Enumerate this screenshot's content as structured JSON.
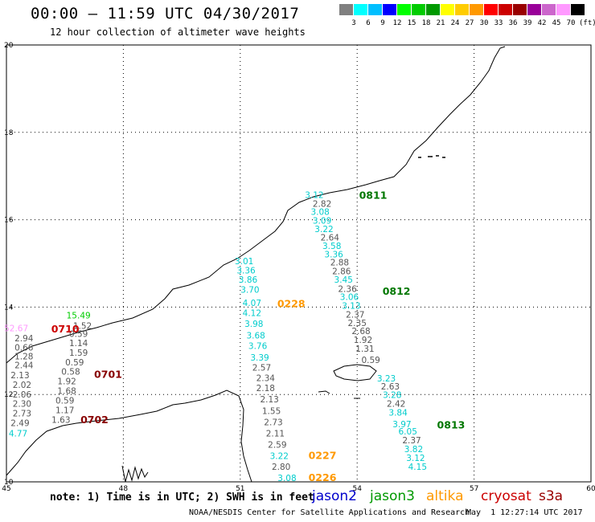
{
  "header": {
    "title": "00:00 — 11:59 UTC 04/30/2017",
    "subtitle": "12 hour collection of altimeter wave heights"
  },
  "legend": {
    "unit": "(ft)",
    "levels": [
      "3",
      "6",
      "9",
      "12",
      "15",
      "18",
      "21",
      "24",
      "27",
      "30",
      "33",
      "36",
      "39",
      "42",
      "45",
      "70"
    ],
    "colors": [
      "#808080",
      "#00ffff",
      "#00bfff",
      "#0000ff",
      "#00ff00",
      "#00cc00",
      "#009900",
      "#ffff00",
      "#ffcc00",
      "#ff9900",
      "#ff0000",
      "#cc0000",
      "#990000",
      "#990099",
      "#cc66cc",
      "#ff99ff",
      "#000000"
    ]
  },
  "axes": {
    "x_ticks": [
      "45",
      "48",
      "51",
      "54",
      "57",
      "60"
    ],
    "y_ticks": [
      "20",
      "18",
      "16",
      "14",
      "12",
      "10"
    ]
  },
  "tracks": [
    {
      "pass": "0811",
      "color": "#007700",
      "points": [
        {
          "v": "3.12",
          "c": "#00cccc",
          "lon": 52.9,
          "lat": 16.5
        },
        {
          "v": "2.82",
          "c": "#555555",
          "lon": 53.1,
          "lat": 16.3
        },
        {
          "v": "3.08",
          "c": "#00cccc",
          "lon": 53.05,
          "lat": 16.11
        },
        {
          "v": "3.09",
          "c": "#00cccc",
          "lon": 53.1,
          "lat": 15.91
        },
        {
          "v": "3.22",
          "c": "#00cccc",
          "lon": 53.15,
          "lat": 15.72
        },
        {
          "v": "2.64",
          "c": "#555555",
          "lon": 53.3,
          "lat": 15.52
        },
        {
          "v": "3.58",
          "c": "#00cccc",
          "lon": 53.35,
          "lat": 15.33
        },
        {
          "v": "3.36",
          "c": "#00cccc",
          "lon": 53.4,
          "lat": 15.14
        },
        {
          "v": "2.88",
          "c": "#555555",
          "lon": 53.55,
          "lat": 14.95
        },
        {
          "v": "2.86",
          "c": "#555555",
          "lon": 53.6,
          "lat": 14.75
        },
        {
          "v": "3.45",
          "c": "#00cccc",
          "lon": 53.65,
          "lat": 14.56
        },
        {
          "v": "2.36",
          "c": "#555555",
          "lon": 53.75,
          "lat": 14.35
        }
      ]
    },
    {
      "pass": "0812",
      "color": "#007700",
      "points": [
        {
          "v": "3.06",
          "c": "#00cccc",
          "lon": 53.8,
          "lat": 14.16
        },
        {
          "v": "3.13",
          "c": "#00cccc",
          "lon": 53.85,
          "lat": 13.96
        },
        {
          "v": "2.37",
          "c": "#555555",
          "lon": 53.95,
          "lat": 13.76
        },
        {
          "v": "2.35",
          "c": "#555555",
          "lon": 54.0,
          "lat": 13.57
        },
        {
          "v": "2.68",
          "c": "#555555",
          "lon": 54.1,
          "lat": 13.38
        },
        {
          "v": "1.92",
          "c": "#555555",
          "lon": 54.15,
          "lat": 13.18
        },
        {
          "v": "1.31",
          "c": "#555555",
          "lon": 54.2,
          "lat": 12.98
        },
        {
          "v": "0.59",
          "c": "#555555",
          "lon": 54.35,
          "lat": 12.72
        }
      ]
    },
    {
      "pass": "0813",
      "color": "#007700",
      "points": [
        {
          "v": "3.23",
          "c": "#00cccc",
          "lon": 54.75,
          "lat": 12.3
        },
        {
          "v": "2.63",
          "c": "#555555",
          "lon": 54.85,
          "lat": 12.11
        },
        {
          "v": "3.28",
          "c": "#00cccc",
          "lon": 54.9,
          "lat": 11.92
        },
        {
          "v": "2.42",
          "c": "#555555",
          "lon": 55.0,
          "lat": 11.72
        },
        {
          "v": "3.84",
          "c": "#00cccc",
          "lon": 55.05,
          "lat": 11.52
        },
        {
          "v": "3.97",
          "c": "#00cccc",
          "lon": 55.15,
          "lat": 11.25
        },
        {
          "v": "6.05",
          "c": "#00cccc",
          "lon": 55.3,
          "lat": 11.08
        },
        {
          "v": "2.37",
          "c": "#555555",
          "lon": 55.4,
          "lat": 10.88
        },
        {
          "v": "3.82",
          "c": "#00cccc",
          "lon": 55.45,
          "lat": 10.68
        },
        {
          "v": "3.12",
          "c": "#00cccc",
          "lon": 55.5,
          "lat": 10.48
        },
        {
          "v": "4.15",
          "c": "#00cccc",
          "lon": 55.55,
          "lat": 10.28
        }
      ]
    },
    {
      "pass": "0228",
      "color": "#ff9900",
      "points": [
        {
          "v": "3.01",
          "c": "#00cccc",
          "lon": 51.1,
          "lat": 14.98
        },
        {
          "v": "3.36",
          "c": "#00cccc",
          "lon": 51.15,
          "lat": 14.77
        },
        {
          "v": "3.86",
          "c": "#00cccc",
          "lon": 51.2,
          "lat": 14.56
        },
        {
          "v": "3.70",
          "c": "#00cccc",
          "lon": 51.25,
          "lat": 14.33
        },
        {
          "v": "4.07",
          "c": "#00cccc",
          "lon": 51.3,
          "lat": 14.03
        },
        {
          "v": "4.12",
          "c": "#00cccc",
          "lon": 51.3,
          "lat": 13.8
        },
        {
          "v": "3.98",
          "c": "#00cccc",
          "lon": 51.35,
          "lat": 13.55
        },
        {
          "v": "3.68",
          "c": "#00cccc",
          "lon": 51.4,
          "lat": 13.28
        },
        {
          "v": "3.76",
          "c": "#00cccc",
          "lon": 51.45,
          "lat": 13.04
        },
        {
          "v": "3.39",
          "c": "#00cccc",
          "lon": 51.5,
          "lat": 12.78
        },
        {
          "v": "2.57",
          "c": "#555555",
          "lon": 51.55,
          "lat": 12.55
        }
      ]
    },
    {
      "pass": "0227",
      "color": "#ff9900",
      "points": [
        {
          "v": "2.34",
          "c": "#555555",
          "lon": 51.65,
          "lat": 12.31
        },
        {
          "v": "2.18",
          "c": "#555555",
          "lon": 51.65,
          "lat": 12.08
        },
        {
          "v": "2.13",
          "c": "#555555",
          "lon": 51.75,
          "lat": 11.82
        },
        {
          "v": "1.55",
          "c": "#555555",
          "lon": 51.8,
          "lat": 11.55
        },
        {
          "v": "2.73",
          "c": "#555555",
          "lon": 51.85,
          "lat": 11.3
        },
        {
          "v": "2.11",
          "c": "#555555",
          "lon": 51.9,
          "lat": 11.04
        },
        {
          "v": "2.59",
          "c": "#555555",
          "lon": 51.95,
          "lat": 10.78
        },
        {
          "v": "3.22",
          "c": "#00cccc",
          "lon": 52.0,
          "lat": 10.52
        },
        {
          "v": "2.80",
          "c": "#555555",
          "lon": 52.05,
          "lat": 10.28
        }
      ]
    },
    {
      "pass": "0226",
      "color": "#ff9900",
      "points": [
        {
          "v": "3.08",
          "c": "#00cccc",
          "lon": 52.2,
          "lat": 10.02
        }
      ]
    },
    {
      "pass": "0710",
      "color": "#cc0000",
      "points": [
        {
          "v": "15.49",
          "c": "#00cc00",
          "lon": 46.85,
          "lat": 13.74
        },
        {
          "v": "52.67",
          "c": "#ff99ff",
          "lon": 45.25,
          "lat": 13.45
        },
        {
          "v": "1.52",
          "c": "#555555",
          "lon": 46.95,
          "lat": 13.5
        },
        {
          "v": "2.94",
          "c": "#555555",
          "lon": 45.45,
          "lat": 13.22
        },
        {
          "v": "0.59",
          "c": "#555555",
          "lon": 46.85,
          "lat": 13.32
        },
        {
          "v": "0.66",
          "c": "#555555",
          "lon": 45.45,
          "lat": 13.01
        },
        {
          "v": "1.14",
          "c": "#555555",
          "lon": 46.85,
          "lat": 13.11
        },
        {
          "v": "1.28",
          "c": "#555555",
          "lon": 45.45,
          "lat": 12.8
        },
        {
          "v": "1.59",
          "c": "#555555",
          "lon": 46.85,
          "lat": 12.89
        }
      ]
    },
    {
      "pass": "0701",
      "color": "#880000",
      "points": [
        {
          "v": "2.44",
          "c": "#555555",
          "lon": 45.45,
          "lat": 12.6
        },
        {
          "v": "0.59",
          "c": "#555555",
          "lon": 46.75,
          "lat": 12.67
        },
        {
          "v": "2.13",
          "c": "#555555",
          "lon": 45.35,
          "lat": 12.37
        },
        {
          "v": "0.58",
          "c": "#555555",
          "lon": 46.65,
          "lat": 12.45
        },
        {
          "v": "2.02",
          "c": "#555555",
          "lon": 45.4,
          "lat": 12.15
        },
        {
          "v": "1.92",
          "c": "#555555",
          "lon": 46.55,
          "lat": 12.23
        }
      ]
    },
    {
      "pass": "0702",
      "color": "#880000",
      "points": [
        {
          "v": "2.06",
          "c": "#555555",
          "lon": 45.4,
          "lat": 11.93
        },
        {
          "v": "1.68",
          "c": "#555555",
          "lon": 46.55,
          "lat": 12.01
        },
        {
          "v": "2.30",
          "c": "#555555",
          "lon": 45.4,
          "lat": 11.72
        },
        {
          "v": "0.59",
          "c": "#555555",
          "lon": 46.5,
          "lat": 11.79
        },
        {
          "v": "2.73",
          "c": "#555555",
          "lon": 45.4,
          "lat": 11.5
        },
        {
          "v": "1.17",
          "c": "#555555",
          "lon": 46.5,
          "lat": 11.57
        },
        {
          "v": "2.49",
          "c": "#555555",
          "lon": 45.35,
          "lat": 11.28
        },
        {
          "v": "1.63",
          "c": "#555555",
          "lon": 46.4,
          "lat": 11.35
        },
        {
          "v": "4.77",
          "c": "#00cccc",
          "lon": 45.3,
          "lat": 11.04
        }
      ]
    }
  ],
  "pass_labels": [
    {
      "id": "0811",
      "color": "#007700",
      "lon": 54.05,
      "lat": 16.48
    },
    {
      "id": "0812",
      "color": "#007700",
      "lon": 54.65,
      "lat": 14.28
    },
    {
      "id": "0813",
      "color": "#007700",
      "lon": 56.05,
      "lat": 11.22
    },
    {
      "id": "0228",
      "color": "#ff9900",
      "lon": 51.95,
      "lat": 14.0
    },
    {
      "id": "0227",
      "color": "#ff9900",
      "lon": 52.75,
      "lat": 10.52
    },
    {
      "id": "0226",
      "color": "#ff9900",
      "lon": 52.75,
      "lat": 10.02
    },
    {
      "id": "0710",
      "color": "#cc0000",
      "lon": 46.15,
      "lat": 13.42
    },
    {
      "id": "0701",
      "color": "#880000",
      "lon": 47.25,
      "lat": 12.38
    },
    {
      "id": "0702",
      "color": "#880000",
      "lon": 46.9,
      "lat": 11.34
    }
  ],
  "footer": {
    "note": "note: 1) Time is in UTC; 2) SWH is in feet",
    "satellites": [
      {
        "name": "jason2",
        "color": "#0000cc"
      },
      {
        "name": "jason3",
        "color": "#009900"
      },
      {
        "name": "altika",
        "color": "#ff9900"
      },
      {
        "name": "cryosat",
        "color": "#cc0000"
      },
      {
        "name": "s3a",
        "color": "#990000"
      }
    ],
    "credit": "NOAA/NESDIS Center for Satellite Applications and Research",
    "timestamp": "May  1 12:27:14 UTC 2017"
  }
}
